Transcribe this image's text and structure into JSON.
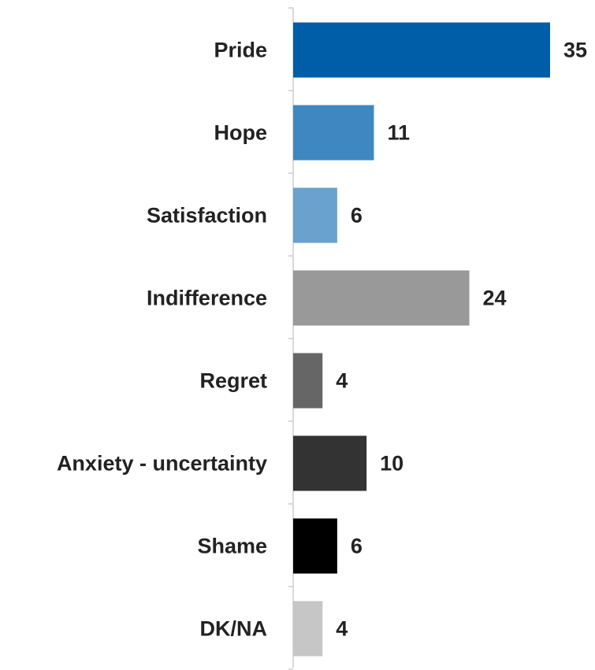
{
  "chart_data": {
    "type": "bar",
    "orientation": "horizontal",
    "categories": [
      "Pride",
      "Hope",
      "Satisfaction",
      "Indifference",
      "Regret",
      "Anxiety - uncertainty",
      "Shame",
      "DK/NA"
    ],
    "values": [
      35,
      11,
      6,
      24,
      4,
      10,
      6,
      4
    ],
    "colors": [
      "#005EA8",
      "#3F87C0",
      "#68A2CD",
      "#999999",
      "#666666",
      "#333333",
      "#000000",
      "#C6C6C6"
    ],
    "xlim": [
      0,
      35
    ],
    "title": "",
    "xlabel": "",
    "ylabel": "",
    "grid": false,
    "legend": false
  }
}
